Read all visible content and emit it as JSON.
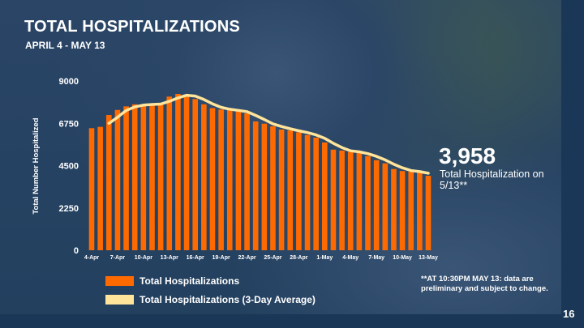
{
  "slide": {
    "title": "TOTAL HOSPITALIZATIONS",
    "subtitle": "APRIL 4 - MAY 13",
    "callout_value": "3,958",
    "callout_line1": "Total Hospitalization on",
    "callout_line2": "5/13**",
    "footnote_line1": "**AT 10:30PM MAY 13: data are",
    "footnote_line2": "preliminary and subject to change.",
    "page_number": "16"
  },
  "colors": {
    "bar": "#ff6a00",
    "avg_line": "#ffe49a",
    "background": "#1a3757"
  },
  "chart_data": {
    "type": "bar",
    "title": "TOTAL HOSPITALIZATIONS",
    "ylabel": "Total Number Hospitalized",
    "xlabel": "",
    "ylim": [
      0,
      9000
    ],
    "yticks": [
      "0",
      "2250",
      "4500",
      "6750",
      "9000"
    ],
    "ytick_values": [
      0,
      2250,
      4500,
      6750,
      9000
    ],
    "xtick_labels": [
      "4-Apr",
      "7-Apr",
      "10-Apr",
      "13-Apr",
      "16-Apr",
      "19-Apr",
      "22-Apr",
      "25-Apr",
      "28-Apr",
      "1-May",
      "4-May",
      "7-May",
      "10-May",
      "13-May"
    ],
    "categories": [
      "4-Apr",
      "5-Apr",
      "6-Apr",
      "7-Apr",
      "8-Apr",
      "9-Apr",
      "10-Apr",
      "11-Apr",
      "12-Apr",
      "13-Apr",
      "14-Apr",
      "15-Apr",
      "16-Apr",
      "17-Apr",
      "18-Apr",
      "19-Apr",
      "20-Apr",
      "21-Apr",
      "22-Apr",
      "23-Apr",
      "24-Apr",
      "25-Apr",
      "26-Apr",
      "27-Apr",
      "28-Apr",
      "29-Apr",
      "30-Apr",
      "1-May",
      "2-May",
      "3-May",
      "4-May",
      "5-May",
      "6-May",
      "7-May",
      "8-May",
      "9-May",
      "10-May",
      "11-May",
      "12-May",
      "13-May"
    ],
    "grid": false,
    "legend_position": "bottom-left",
    "series": [
      {
        "name": "Total Hospitalizations",
        "type": "bar",
        "values": [
          6490,
          6560,
          7190,
          7460,
          7650,
          7760,
          7740,
          7760,
          7820,
          8170,
          8310,
          8250,
          8040,
          7760,
          7560,
          7480,
          7450,
          7380,
          7280,
          6850,
          6730,
          6590,
          6420,
          6370,
          6270,
          6130,
          5990,
          5730,
          5350,
          5300,
          5220,
          5180,
          5010,
          4790,
          4620,
          4320,
          4210,
          4180,
          4150,
          3958
        ]
      },
      {
        "name": "Total Hospitalizations (3-Day Average)",
        "type": "line",
        "values": [
          null,
          null,
          6747,
          7070,
          7433,
          7623,
          7717,
          7753,
          7773,
          7917,
          8100,
          8243,
          8200,
          8017,
          7787,
          7600,
          7497,
          7437,
          7370,
          7170,
          6953,
          6723,
          6580,
          6460,
          6353,
          6257,
          6130,
          5950,
          5690,
          5460,
          5290,
          5233,
          5137,
          4993,
          4807,
          4577,
          4383,
          4237,
          4180,
          4096
        ]
      }
    ]
  }
}
